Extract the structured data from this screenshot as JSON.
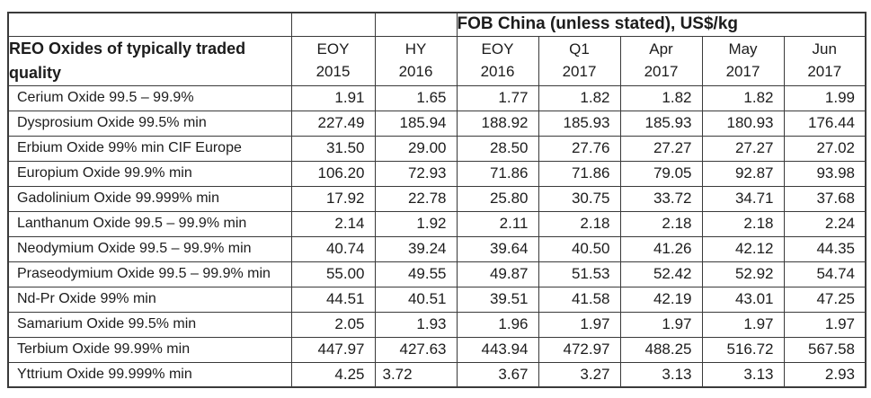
{
  "chart_data": {
    "type": "table",
    "title": "FOB China (unless stated), US$/kg",
    "row_header": "REO Oxides of typically traded quality",
    "units": "US$/kg",
    "columns": [
      "EOY 2015",
      "HY 2016",
      "EOY 2016",
      "Q1 2017",
      "Apr 2017",
      "May 2017",
      "Jun 2017"
    ],
    "rows": [
      {
        "label": "Cerium Oxide 99.5 – 99.9%",
        "values": [
          1.91,
          1.65,
          1.77,
          1.82,
          1.82,
          1.82,
          1.99
        ]
      },
      {
        "label": "Dysprosium Oxide 99.5% min",
        "values": [
          227.49,
          185.94,
          188.92,
          185.93,
          185.93,
          180.93,
          176.44
        ]
      },
      {
        "label": "Erbium Oxide 99% min CIF Europe",
        "values": [
          31.5,
          29.0,
          28.5,
          27.76,
          27.27,
          27.27,
          27.02
        ]
      },
      {
        "label": "Europium Oxide 99.9% min",
        "values": [
          106.2,
          72.93,
          71.86,
          71.86,
          79.05,
          92.87,
          93.98
        ]
      },
      {
        "label": "Gadolinium Oxide 99.999% min",
        "values": [
          17.92,
          22.78,
          25.8,
          30.75,
          33.72,
          34.71,
          37.68
        ]
      },
      {
        "label": "Lanthanum Oxide 99.5 – 99.9% min",
        "values": [
          2.14,
          1.92,
          2.11,
          2.18,
          2.18,
          2.18,
          2.24
        ]
      },
      {
        "label": "Neodymium Oxide 99.5 – 99.9% min",
        "values": [
          40.74,
          39.24,
          39.64,
          40.5,
          41.26,
          42.12,
          44.35
        ]
      },
      {
        "label": "Praseodymium Oxide 99.5 – 99.9% min",
        "values": [
          55.0,
          49.55,
          49.87,
          51.53,
          52.42,
          52.92,
          54.74
        ]
      },
      {
        "label": "Nd-Pr Oxide 99% min",
        "values": [
          44.51,
          40.51,
          39.51,
          41.58,
          42.19,
          43.01,
          47.25
        ]
      },
      {
        "label": "Samarium Oxide 99.5% min",
        "values": [
          2.05,
          1.93,
          1.96,
          1.97,
          1.97,
          1.97,
          1.97
        ]
      },
      {
        "label": "Terbium Oxide 99.99% min",
        "values": [
          447.97,
          427.63,
          443.94,
          472.97,
          488.25,
          516.72,
          567.58
        ]
      },
      {
        "label": "Yttrium Oxide 99.999% min",
        "values": [
          4.25,
          3.72,
          3.67,
          3.27,
          3.13,
          3.13,
          2.93
        ]
      }
    ],
    "value_decimals": 2
  },
  "table": {
    "unit_header": "FOB China (unless stated), US$/kg",
    "row_header": "REO Oxides of typically traded quality",
    "column_lines": [
      [
        "EOY",
        "2015"
      ],
      [
        "HY",
        "2016"
      ],
      [
        "EOY",
        "2016"
      ],
      [
        "Q1",
        "2017"
      ],
      [
        "Apr",
        "2017"
      ],
      [
        "May",
        "2017"
      ],
      [
        "Jun",
        "2017"
      ]
    ],
    "border_color": "#3a3a3a",
    "text_color": "#1c1c1c",
    "background_color": "#ffffff"
  }
}
